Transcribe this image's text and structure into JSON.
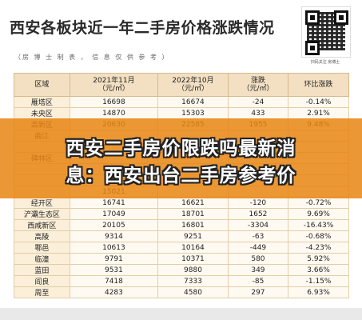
{
  "header": {
    "title": "西安各板块近一年二手房价格涨跌情况",
    "note": "（房 博 士 制 表 ， 信 息 仅 供 参 考 ）",
    "qr_caption": "扫码关注 房博士"
  },
  "table": {
    "columns": [
      {
        "line1": "区域",
        "line2": ""
      },
      {
        "line1": "2021年11月",
        "line2": "（元/㎡）"
      },
      {
        "line1": "2022年10月",
        "line2": "（元/㎡）"
      },
      {
        "line1": "涨跌",
        "line2": "（元/㎡）"
      },
      {
        "line1": "环比涨跌",
        "line2": ""
      }
    ],
    "rows": [
      [
        "雁塔区",
        "16698",
        "16674",
        "-24",
        "-0.14%"
      ],
      [
        "未央区",
        "14870",
        "15303",
        "433",
        "2.91%"
      ],
      [
        "高新区",
        "20630",
        "22585",
        "1955",
        "9.48%"
      ],
      [
        "曲江",
        "",
        "",
        "",
        ""
      ],
      [
        "",
        "",
        "",
        "",
        ""
      ],
      [
        "碑林区",
        "",
        "",
        "",
        ""
      ],
      [
        "",
        "",
        "",
        "",
        ""
      ],
      [
        "",
        "",
        "",
        "",
        ""
      ],
      [
        "",
        "15021",
        "",
        "",
        ""
      ],
      [
        "经开区",
        "16741",
        "16621",
        "-120",
        "-0.72%"
      ],
      [
        "浐灞生态区",
        "17049",
        "18701",
        "1652",
        "9.69%"
      ],
      [
        "西咸新区",
        "20105",
        "16801",
        "-3304",
        "-16.43%"
      ],
      [
        "高陵",
        "9314",
        "9251",
        "-63",
        "-0.68%"
      ],
      [
        "鄠邑",
        "10613",
        "10164",
        "-449",
        "-4.23%"
      ],
      [
        "临潼",
        "9791",
        "10371",
        "580",
        "5.92%"
      ],
      [
        "蓝田",
        "9531",
        "9880",
        "349",
        "3.66%"
      ],
      [
        "阎良",
        "7418",
        "7333",
        "-85",
        "-1.15%"
      ],
      [
        "周至",
        "4283",
        "4580",
        "297",
        "6.93%"
      ]
    ]
  },
  "banner": {
    "line1": "西安二手房价限跌吗最新消",
    "line2": "息：西安出台二手房参考价"
  },
  "colors": {
    "banner": "#e88614",
    "header_cell": "#f3e0c2",
    "region_cell": "#fbefd9"
  }
}
